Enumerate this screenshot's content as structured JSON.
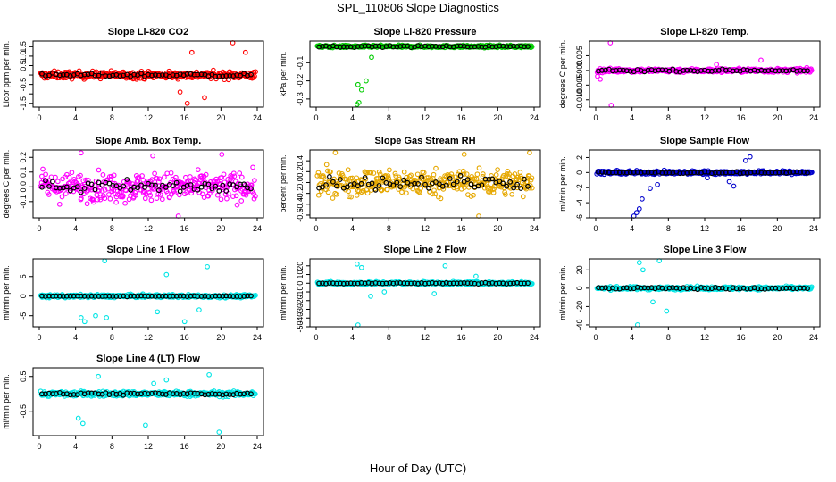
{
  "figure": {
    "title": "SPL_110806  Slope Diagnostics",
    "xlabel": "Hour of Day (UTC)"
  },
  "chart_data": [
    {
      "type": "scatter",
      "title": "Slope Li-820 CO2",
      "ylabel": "Licor ppm per min.",
      "color": "#ff0000",
      "xlim": [
        0,
        24
      ],
      "xticks": [
        0,
        4,
        8,
        12,
        16,
        20,
        24
      ],
      "ylim": [
        -1.7,
        1.8
      ],
      "yticks": [
        -1.5,
        -1.0,
        -0.5,
        0.0,
        0.5,
        1.0,
        1.5
      ],
      "ytick_labels": [
        "-1.5",
        "",
        "-0.5",
        "",
        "0.5",
        "1.0",
        "1.5"
      ],
      "center": 0.0,
      "base_spread": 0.35,
      "black_spread": 0.2,
      "outliers": [
        [
          16.3,
          -1.5
        ],
        [
          16.8,
          1.2
        ],
        [
          18.2,
          -1.2
        ],
        [
          21.3,
          1.8
        ],
        [
          22.7,
          1.2
        ],
        [
          15.5,
          -0.9
        ]
      ]
    },
    {
      "type": "scatter",
      "title": "Slope Li-820 Pressure",
      "ylabel": "kPa per min.",
      "color": "#00cc00",
      "xlim": [
        0,
        24
      ],
      "xticks": [
        0,
        4,
        8,
        12,
        16,
        20,
        24
      ],
      "ylim": [
        -0.345,
        0.02
      ],
      "yticks": [
        -0.1,
        -0.2,
        -0.3
      ],
      "ytick_labels": [
        "-0.1",
        "-0.2",
        "-0.3"
      ],
      "center": -0.01,
      "base_spread": 0.012,
      "black_spread": 0.008,
      "outliers": [
        [
          4.5,
          -0.33
        ],
        [
          4.7,
          -0.32
        ],
        [
          5.0,
          -0.25
        ],
        [
          5.5,
          -0.2
        ],
        [
          4.6,
          -0.22
        ],
        [
          6.1,
          -0.07
        ]
      ]
    },
    {
      "type": "scatter",
      "title": "Slope Li-820 Temp.",
      "ylabel": "degrees C per min.",
      "color": "#ff00ff",
      "xlim": [
        0,
        24
      ],
      "xticks": [
        0,
        4,
        8,
        12,
        16,
        20,
        24
      ],
      "ylim": [
        -0.0125,
        0.01
      ],
      "yticks": [
        -0.01,
        -0.005,
        0.0,
        0.005
      ],
      "ytick_labels": [
        "-0.010",
        "-0.005",
        "0.000",
        "0.005"
      ],
      "center": 0.0,
      "base_spread": 0.0012,
      "black_spread": 0.0008,
      "outliers": [
        [
          1.6,
          0.0095
        ],
        [
          1.7,
          -0.0125
        ],
        [
          0.2,
          -0.002
        ],
        [
          0.5,
          -0.003
        ],
        [
          18.2,
          0.0035
        ],
        [
          13.3,
          0.002
        ]
      ]
    },
    {
      "type": "scatter",
      "title": "Slope Amb. Box Temp.",
      "ylabel": "degrees C per min.",
      "color": "#ff00ff",
      "xlim": [
        0,
        24
      ],
      "xticks": [
        0,
        4,
        8,
        12,
        16,
        20,
        24
      ],
      "ylim": [
        -0.21,
        0.25
      ],
      "yticks": [
        -0.1,
        0.0,
        0.1,
        0.2
      ],
      "ytick_labels": [
        "-0.1",
        "0.0",
        "0.1",
        "0.2"
      ],
      "center": 0.0,
      "base_spread": 0.17,
      "black_spread": 0.09,
      "outliers": [
        [
          15.3,
          -0.2
        ],
        [
          4.6,
          0.23
        ],
        [
          20.1,
          0.22
        ],
        [
          12.5,
          0.21
        ]
      ]
    },
    {
      "type": "scatter",
      "title": "Slope Gas Stream RH",
      "ylabel": "percent per min.",
      "color": "#e6a800",
      "xlim": [
        0,
        24
      ],
      "xticks": [
        0,
        4,
        8,
        12,
        16,
        20,
        24
      ],
      "ylim": [
        -0.65,
        0.6
      ],
      "yticks": [
        -0.6,
        -0.4,
        -0.2,
        0.0,
        0.2,
        0.4
      ],
      "ytick_labels": [
        "-0.6",
        "-0.4",
        "-0.2",
        "0.0",
        "0.2",
        "0.4"
      ],
      "center": 0.0,
      "base_spread": 0.42,
      "black_spread": 0.25,
      "outliers": [
        [
          2.1,
          0.55
        ],
        [
          17.9,
          -0.62
        ],
        [
          23.5,
          0.55
        ],
        [
          16.3,
          0.52
        ]
      ]
    },
    {
      "type": "scatter",
      "title": "Slope Sample Flow",
      "ylabel": "ml/min per min.",
      "color": "#0000cc",
      "xlim": [
        0,
        24
      ],
      "xticks": [
        0,
        4,
        8,
        12,
        16,
        20,
        24
      ],
      "ylim": [
        -6,
        3
      ],
      "yticks": [
        -6,
        -4,
        -2,
        0,
        2
      ],
      "ytick_labels": [
        "-6",
        "-4",
        "-2",
        "0",
        "2"
      ],
      "center": 0.0,
      "base_spread": 0.4,
      "black_spread": 0.2,
      "outliers": [
        [
          4.2,
          -5.8
        ],
        [
          4.5,
          -5.3
        ],
        [
          4.8,
          -4.8
        ],
        [
          5.1,
          -3.5
        ],
        [
          6.0,
          -2.1
        ],
        [
          6.8,
          -1.6
        ],
        [
          17.0,
          2.1
        ],
        [
          16.5,
          1.6
        ],
        [
          15.2,
          -1.8
        ],
        [
          14.7,
          -1.2
        ],
        [
          12.3,
          -0.7
        ]
      ]
    },
    {
      "type": "scatter",
      "title": "Slope Line 1 Flow",
      "ylabel": "ml/min per min.",
      "color": "#00e5e5",
      "xlim": [
        0,
        24
      ],
      "xticks": [
        0,
        4,
        8,
        12,
        16,
        20,
        24
      ],
      "ylim": [
        -7.8,
        9.5
      ],
      "yticks": [
        -5,
        0,
        5
      ],
      "ytick_labels": [
        "-5",
        "0",
        "5"
      ],
      "center": 0.0,
      "base_spread": 0.7,
      "black_spread": 0.2,
      "outliers": [
        [
          7.2,
          9.0
        ],
        [
          4.6,
          -5.5
        ],
        [
          5.0,
          -6.5
        ],
        [
          6.2,
          -5.0
        ],
        [
          7.4,
          -5.5
        ],
        [
          16.0,
          -6.5
        ],
        [
          18.5,
          7.5
        ],
        [
          14.0,
          5.5
        ],
        [
          13.0,
          -4.0
        ],
        [
          17.6,
          -3.5
        ]
      ]
    },
    {
      "type": "scatter",
      "title": "Slope Line 2 Flow",
      "ylabel": "ml/min per min.",
      "color": "#00e5e5",
      "xlim": [
        0,
        24
      ],
      "xticks": [
        0,
        4,
        8,
        12,
        16,
        20,
        24
      ],
      "ylim": [
        -50,
        28
      ],
      "yticks": [
        -50,
        -40,
        -30,
        -20,
        -10,
        0,
        10,
        20
      ],
      "ytick_labels": [
        "-50",
        "-40",
        "-30",
        "-20",
        "-10",
        "0",
        "10",
        "20"
      ],
      "center": 0.0,
      "base_spread": 3,
      "black_spread": 1.5,
      "outliers": [
        [
          4.5,
          22
        ],
        [
          5.0,
          18
        ],
        [
          4.6,
          -48
        ],
        [
          6.0,
          -15
        ],
        [
          14.2,
          20
        ],
        [
          13.0,
          -12
        ],
        [
          17.6,
          8
        ],
        [
          7.5,
          -10
        ]
      ]
    },
    {
      "type": "scatter",
      "title": "Slope Line 3 Flow",
      "ylabel": "ml/min per min.",
      "color": "#00e5e5",
      "xlim": [
        0,
        24
      ],
      "xticks": [
        0,
        4,
        8,
        12,
        16,
        20,
        24
      ],
      "ylim": [
        -42,
        32
      ],
      "yticks": [
        -40,
        -20,
        0,
        20
      ],
      "ytick_labels": [
        "-40",
        "-20",
        "0",
        "20"
      ],
      "center": 0.0,
      "base_spread": 3,
      "black_spread": 2,
      "outliers": [
        [
          4.6,
          -40
        ],
        [
          4.8,
          28
        ],
        [
          7.0,
          30
        ],
        [
          6.3,
          -15
        ],
        [
          7.8,
          -25
        ],
        [
          5.2,
          20
        ]
      ]
    },
    {
      "type": "scatter",
      "title": "Slope Line 4 (LT) Flow",
      "ylabel": "ml/min per min.",
      "color": "#00e5e5",
      "xlim": [
        0,
        24
      ],
      "xticks": [
        0,
        4,
        8,
        12,
        16,
        20,
        24
      ],
      "ylim": [
        -1.2,
        0.75
      ],
      "yticks": [
        -0.5,
        0.5
      ],
      "ytick_labels": [
        "-0.5",
        "0.5"
      ],
      "center": 0.0,
      "base_spread": 0.13,
      "black_spread": 0.08,
      "outliers": [
        [
          4.3,
          -0.7
        ],
        [
          4.8,
          -0.85
        ],
        [
          11.7,
          -0.9
        ],
        [
          18.7,
          0.55
        ],
        [
          19.8,
          -1.1
        ],
        [
          6.5,
          0.5
        ],
        [
          12.6,
          0.3
        ],
        [
          14.0,
          0.4
        ]
      ]
    }
  ]
}
